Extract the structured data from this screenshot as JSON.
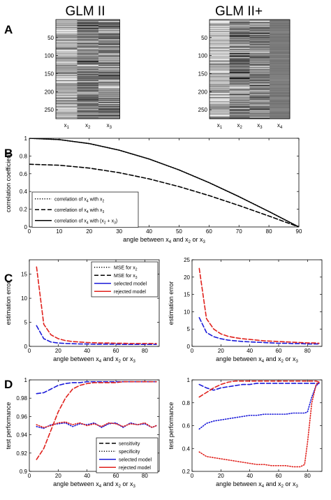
{
  "figure": {
    "panel_letters": [
      "A",
      "B",
      "C",
      "D"
    ],
    "design_titles": [
      "GLM II",
      "GLM II+"
    ]
  },
  "chart_data": [
    {
      "id": "A-left",
      "type": "heatmap",
      "title": "GLM II",
      "ytick_labels": [
        "50",
        "100",
        "150",
        "200",
        "250"
      ],
      "columns": [
        {
          "label": "x",
          "sub": "1"
        },
        {
          "label": "x",
          "sub": "2"
        },
        {
          "label": "x",
          "sub": "3"
        }
      ],
      "rows": 275,
      "colormap": "gray"
    },
    {
      "id": "A-right",
      "type": "heatmap",
      "title": "GLM II+",
      "ytick_labels": [
        "50",
        "100",
        "150",
        "200",
        "250"
      ],
      "columns": [
        {
          "label": "x",
          "sub": "1"
        },
        {
          "label": "x",
          "sub": "2"
        },
        {
          "label": "x",
          "sub": "3"
        },
        {
          "label": "x",
          "sub": "4"
        }
      ],
      "rows": 275,
      "colormap": "gray"
    },
    {
      "id": "B",
      "type": "line",
      "xlabel": "angle between x₄ and x₂ or x₃",
      "ylabel": "correlation coefficient",
      "xlim": [
        0,
        90
      ],
      "ylim": [
        0,
        1
      ],
      "xticks": [
        0,
        10,
        20,
        30,
        40,
        50,
        60,
        70,
        80,
        90
      ],
      "yticks": [
        0,
        0.2,
        0.4,
        0.6,
        0.8,
        1
      ],
      "ytick_labels": [
        "0",
        "0.2",
        "0.4",
        "0.6",
        "0.8",
        "1"
      ],
      "legend_position": "bottom-left",
      "x": [
        0,
        10,
        20,
        30,
        40,
        50,
        60,
        70,
        80,
        90
      ],
      "series": [
        {
          "name": "correlation of x₄ with x₂",
          "style": "dotted",
          "color": "#000000",
          "values": [
            1.0,
            0.985,
            0.94,
            0.866,
            0.766,
            0.643,
            0.5,
            0.342,
            0.174,
            0.0
          ]
        },
        {
          "name": "correlation of x₄ with x₃",
          "style": "dashed",
          "color": "#000000",
          "values": [
            0.707,
            0.696,
            0.664,
            0.612,
            0.542,
            0.455,
            0.354,
            0.242,
            0.123,
            0.0
          ]
        },
        {
          "name": "correlation of x₄ with (x₂ + x₃)",
          "style": "solid",
          "color": "#000000",
          "values": [
            1.0,
            0.985,
            0.94,
            0.866,
            0.766,
            0.643,
            0.5,
            0.342,
            0.174,
            0.0
          ]
        }
      ]
    },
    {
      "id": "C-left",
      "type": "line",
      "xlabel": "angle between x₄ and x₂ or x₃",
      "ylabel": "estimation error",
      "xlim": [
        0,
        90
      ],
      "ylim": [
        0,
        18
      ],
      "xticks": [
        0,
        20,
        40,
        60,
        80
      ],
      "yticks": [
        0,
        5,
        10,
        15
      ],
      "legend_position": "top-right",
      "legend": [
        {
          "name": "MSE for x₂",
          "style": "dotted",
          "color": "#000000"
        },
        {
          "name": "MSE for x₃",
          "style": "dashed",
          "color": "#000000"
        },
        {
          "name": "selected model",
          "style": "solid",
          "color": "#1a1ad9"
        },
        {
          "name": "rejected model",
          "style": "solid",
          "color": "#e0201b"
        }
      ],
      "x": [
        5,
        10,
        15,
        20,
        25,
        30,
        35,
        40,
        45,
        50,
        55,
        60,
        65,
        70,
        75,
        80,
        85,
        88
      ],
      "series": [
        {
          "name": "selected model",
          "style": "dashed",
          "color": "#1a1ad9",
          "values": [
            4.3,
            1.6,
            0.9,
            0.7,
            0.6,
            0.55,
            0.5,
            0.5,
            0.45,
            0.45,
            0.45,
            0.45,
            0.4,
            0.4,
            0.4,
            0.4,
            0.4,
            0.4
          ]
        },
        {
          "name": "rejected model",
          "style": "dashed",
          "color": "#e0201b",
          "values": [
            16.5,
            4.6,
            2.4,
            1.6,
            1.2,
            1.0,
            0.9,
            0.8,
            0.75,
            0.7,
            0.7,
            0.65,
            0.65,
            0.6,
            0.6,
            0.6,
            0.6,
            0.6
          ]
        }
      ]
    },
    {
      "id": "C-right",
      "type": "line",
      "xlabel": "angle between x₄ and x₂ or x₃",
      "ylabel": "estimation error",
      "xlim": [
        0,
        90
      ],
      "ylim": [
        0,
        25
      ],
      "xticks": [
        0,
        20,
        40,
        60,
        80
      ],
      "yticks": [
        0,
        5,
        10,
        15,
        20,
        25
      ],
      "x": [
        5,
        10,
        15,
        20,
        25,
        30,
        35,
        40,
        45,
        50,
        55,
        60,
        65,
        70,
        75,
        80,
        85,
        88
      ],
      "series": [
        {
          "name": "selected model",
          "style": "dashed",
          "color": "#1a1ad9",
          "values": [
            8.3,
            4.0,
            2.8,
            2.2,
            1.8,
            1.6,
            1.4,
            1.3,
            1.2,
            1.1,
            1.0,
            0.9,
            0.9,
            0.8,
            0.8,
            0.7,
            0.7,
            0.7
          ]
        },
        {
          "name": "rejected model",
          "style": "dashed",
          "color": "#e0201b",
          "values": [
            22.5,
            8.0,
            5.0,
            3.6,
            2.9,
            2.5,
            2.2,
            2.0,
            1.8,
            1.6,
            1.5,
            1.4,
            1.3,
            1.2,
            1.1,
            1.0,
            1.0,
            0.9
          ]
        }
      ]
    },
    {
      "id": "D-left",
      "type": "line",
      "xlabel": "angle between x₄ and x₂ or x₃",
      "ylabel": "test performance",
      "xlim": [
        0,
        90
      ],
      "ylim": [
        0.9,
        1.0
      ],
      "xticks": [
        0,
        20,
        40,
        60,
        80
      ],
      "yticks": [
        0.9,
        0.92,
        0.94,
        0.96,
        0.98,
        1.0
      ],
      "ytick_labels": [
        "0.9",
        "0.92",
        "0.94",
        "0.96",
        "0.98",
        "1"
      ],
      "legend_position": "bottom-right",
      "legend": [
        {
          "name": "sensitivity",
          "style": "dashed",
          "color": "#000000"
        },
        {
          "name": "specificity",
          "style": "dotted",
          "color": "#000000"
        },
        {
          "name": "selected model",
          "style": "solid",
          "color": "#1a1ad9"
        },
        {
          "name": "rejected model",
          "style": "solid",
          "color": "#e0201b"
        }
      ],
      "x": [
        5,
        10,
        15,
        20,
        25,
        30,
        35,
        40,
        45,
        50,
        55,
        60,
        65,
        70,
        75,
        80,
        85,
        88
      ],
      "series": [
        {
          "name": "selected sensitivity",
          "style": "dashed",
          "color": "#1a1ad9",
          "values": [
            0.985,
            0.986,
            0.99,
            0.994,
            0.996,
            0.997,
            0.997,
            0.998,
            0.998,
            0.998,
            0.998,
            0.998,
            0.998,
            0.998,
            0.998,
            0.998,
            0.998,
            0.998
          ]
        },
        {
          "name": "selected specificity",
          "style": "dotted",
          "color": "#1a1ad9",
          "values": [
            0.949,
            0.947,
            0.951,
            0.952,
            0.953,
            0.949,
            0.952,
            0.951,
            0.953,
            0.948,
            0.952,
            0.953,
            0.948,
            0.953,
            0.951,
            0.952,
            0.948,
            0.95
          ]
        },
        {
          "name": "rejected sensitivity",
          "style": "dashed",
          "color": "#e0201b",
          "values": [
            0.913,
            0.925,
            0.945,
            0.965,
            0.98,
            0.99,
            0.994,
            0.996,
            0.997,
            0.997,
            0.997,
            0.997,
            0.998,
            0.998,
            0.998,
            0.998,
            0.998,
            0.998
          ]
        },
        {
          "name": "rejected specificity",
          "style": "dotted",
          "color": "#e0201b",
          "values": [
            0.951,
            0.948,
            0.95,
            0.953,
            0.954,
            0.951,
            0.953,
            0.95,
            0.952,
            0.949,
            0.953,
            0.952,
            0.949,
            0.952,
            0.951,
            0.953,
            0.948,
            0.95
          ]
        }
      ]
    },
    {
      "id": "D-right",
      "type": "line",
      "xlabel": "angle between x₄ and x₂ or x₃",
      "ylabel": "test performance",
      "xlim": [
        0,
        90
      ],
      "ylim": [
        0.2,
        1.0
      ],
      "xticks": [
        0,
        20,
        40,
        60,
        80
      ],
      "yticks": [
        0.2,
        0.4,
        0.6,
        0.8,
        1.0
      ],
      "ytick_labels": [
        "0.2",
        "0.4",
        "0.6",
        "0.8",
        "1"
      ],
      "x": [
        5,
        10,
        15,
        20,
        25,
        30,
        35,
        40,
        45,
        50,
        55,
        60,
        65,
        70,
        75,
        78,
        80,
        83,
        86,
        88
      ],
      "series": [
        {
          "name": "selected sensitivity",
          "style": "dashed",
          "color": "#1a1ad9",
          "values": [
            0.96,
            0.93,
            0.91,
            0.93,
            0.94,
            0.95,
            0.96,
            0.96,
            0.97,
            0.97,
            0.97,
            0.97,
            0.97,
            0.97,
            0.97,
            0.97,
            0.97,
            0.97,
            0.97,
            0.97
          ]
        },
        {
          "name": "selected specificity",
          "style": "dotted",
          "color": "#1a1ad9",
          "values": [
            0.57,
            0.62,
            0.64,
            0.65,
            0.66,
            0.67,
            0.68,
            0.69,
            0.69,
            0.7,
            0.7,
            0.7,
            0.7,
            0.71,
            0.71,
            0.71,
            0.72,
            0.85,
            0.95,
            0.97
          ]
        },
        {
          "name": "rejected sensitivity",
          "style": "dashed",
          "color": "#e0201b",
          "values": [
            0.85,
            0.89,
            0.93,
            0.96,
            0.98,
            0.99,
            0.99,
            0.99,
            0.99,
            0.99,
            0.99,
            0.99,
            0.99,
            0.99,
            0.99,
            0.99,
            0.99,
            0.99,
            0.99,
            0.98
          ]
        },
        {
          "name": "rejected specificity",
          "style": "dotted",
          "color": "#e0201b",
          "values": [
            0.37,
            0.33,
            0.32,
            0.31,
            0.3,
            0.29,
            0.28,
            0.27,
            0.26,
            0.26,
            0.25,
            0.25,
            0.25,
            0.24,
            0.24,
            0.26,
            0.45,
            0.8,
            0.96,
            0.98
          ]
        }
      ]
    }
  ]
}
